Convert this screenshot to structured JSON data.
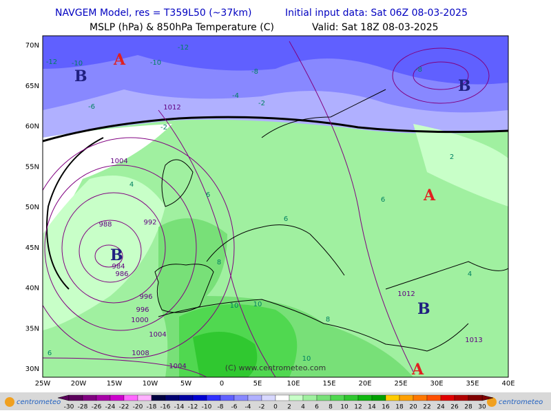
{
  "header": {
    "title_left": "NAVGEM Model, res = T359L50 (~37km)",
    "title_right": "Initial input data: Sat 06Z 08-03-2025",
    "subtitle_left": "MSLP (hPa) & 850hPa Temperature (C)",
    "subtitle_right": "Valid: Sat 18Z 08-03-2025"
  },
  "map": {
    "lat_labels": [
      "70N",
      "65N",
      "60N",
      "55N",
      "50N",
      "45N",
      "40N",
      "35N",
      "30N"
    ],
    "lon_labels": [
      "25W",
      "20W",
      "15W",
      "10W",
      "5W",
      "0",
      "5E",
      "10E",
      "15E",
      "20E",
      "25E",
      "30E",
      "35E",
      "40E"
    ],
    "centers": [
      "B",
      "A",
      "B",
      "A",
      "B",
      "B",
      "A"
    ],
    "isobar_labels": [
      "1012",
      "1004",
      "988",
      "992",
      "984",
      "986",
      "996",
      "996",
      "1000",
      "1004",
      "1008",
      "1004",
      "1012",
      "1013"
    ],
    "temperature_labels": [
      "-12",
      "-10",
      "-10",
      "-12",
      "-8",
      "-8",
      "-6",
      "-4",
      "-2",
      "-2",
      "2",
      "4",
      "6",
      "6",
      "8",
      "10",
      "10",
      "10",
      "6",
      "4",
      "8",
      "6"
    ],
    "watermark": "(C) www.centrometeo.com"
  },
  "legend": {
    "labels": [
      -30,
      -28,
      -26,
      -24,
      -22,
      -20,
      -18,
      -16,
      -14,
      -12,
      -10,
      -8,
      -6,
      -4,
      -2,
      0,
      2,
      4,
      6,
      8,
      10,
      12,
      14,
      16,
      18,
      20,
      22,
      24,
      26,
      28,
      30
    ],
    "colors": [
      "#5a005a",
      "#800080",
      "#a600a6",
      "#cc00cc",
      "#ff66ff",
      "#ffb0ff",
      "#000040",
      "#000070",
      "#0000a0",
      "#0000d0",
      "#3030ff",
      "#6060ff",
      "#8888ff",
      "#b0b0ff",
      "#d8d8ff",
      "#ffffff",
      "#c8ffc8",
      "#a0f0a0",
      "#78e078",
      "#50d850",
      "#30c830",
      "#10b810",
      "#00a000",
      "#ffcc00",
      "#ffa000",
      "#ff7800",
      "#ff5000",
      "#e00000",
      "#b00000",
      "#800000"
    ],
    "logo": "centrometeo"
  }
}
